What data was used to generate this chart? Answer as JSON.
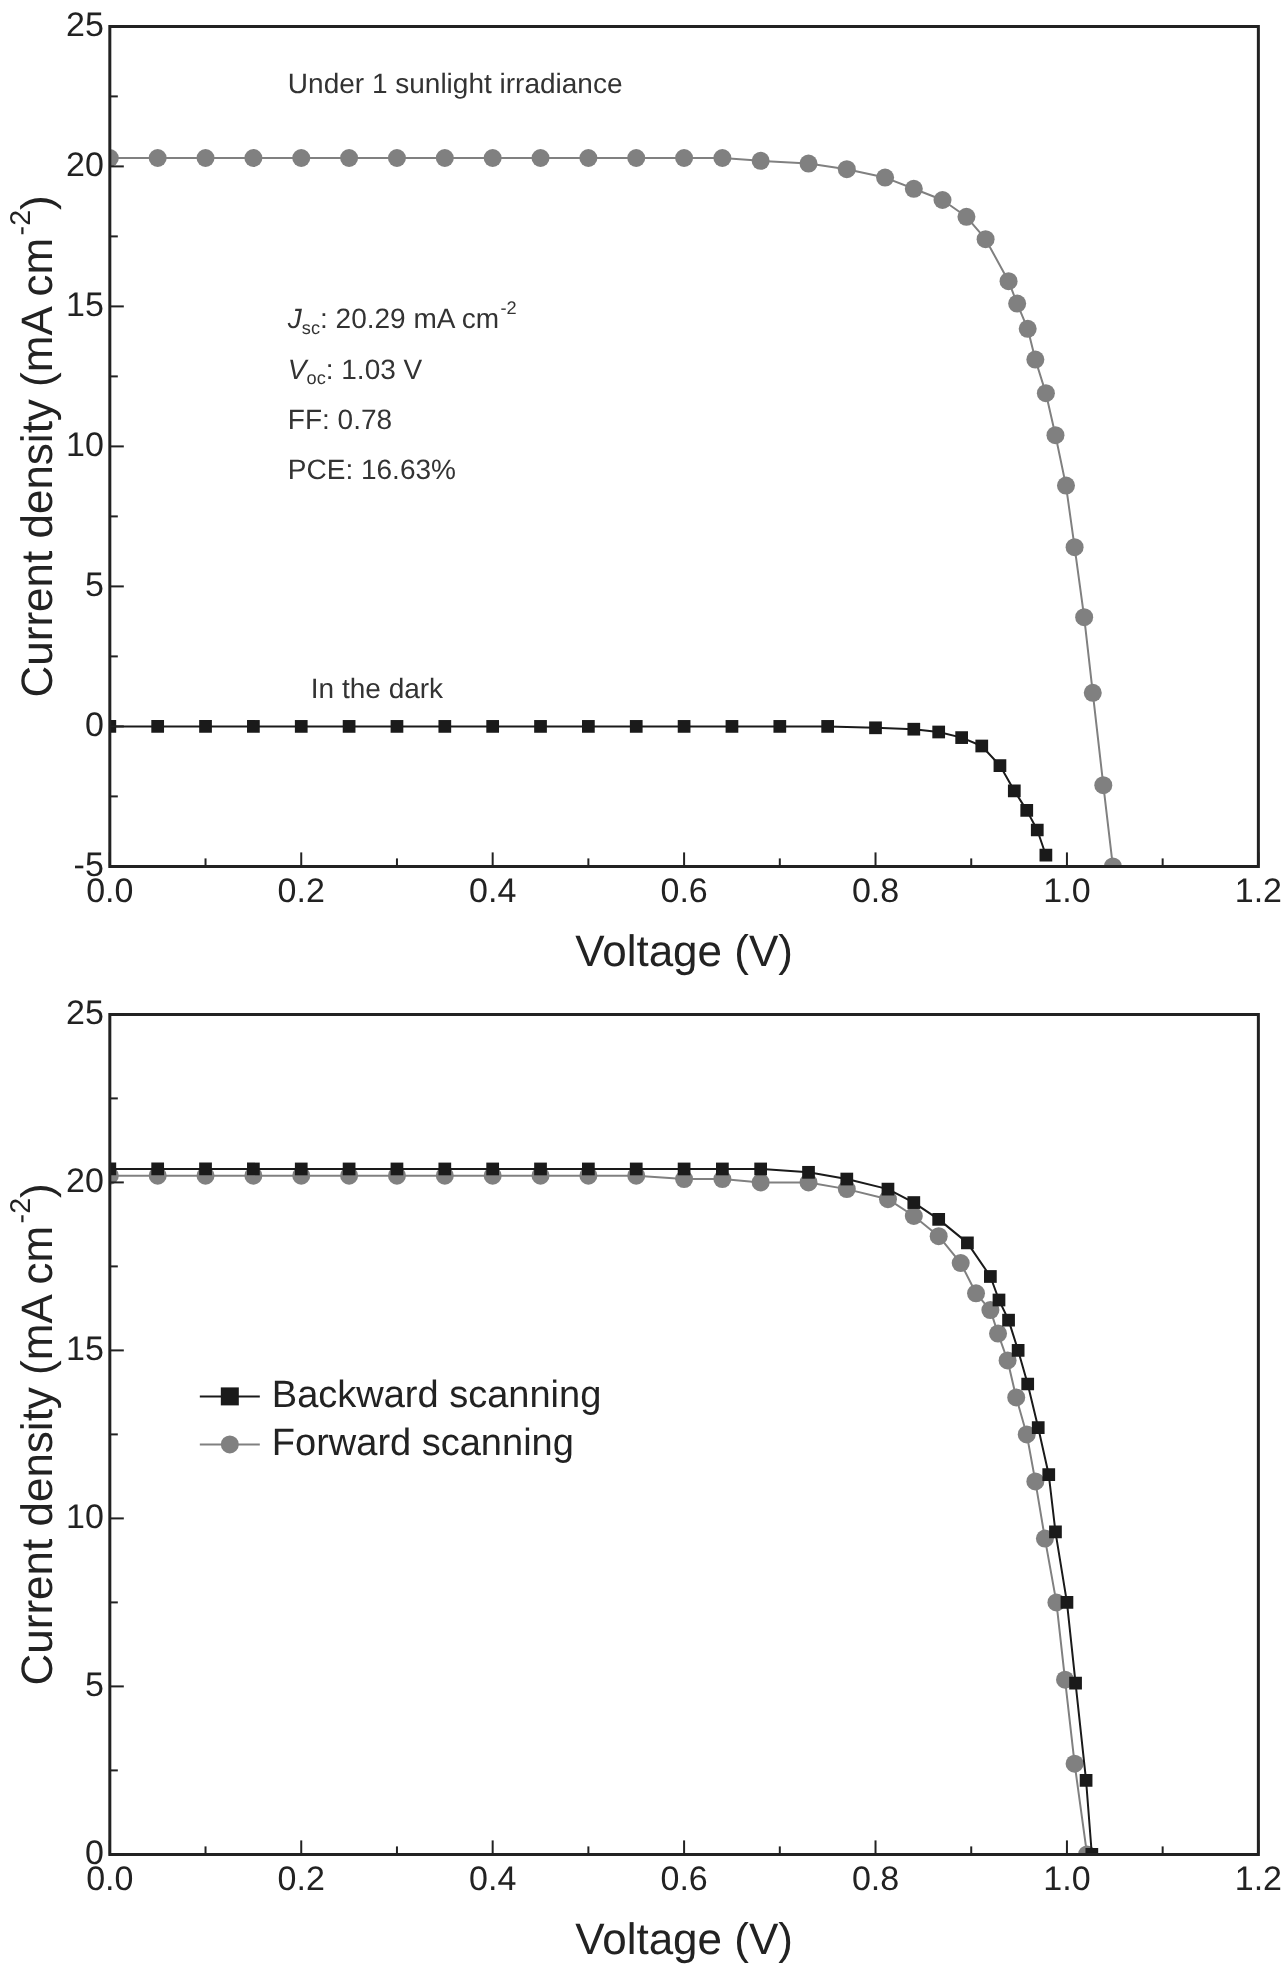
{
  "chart_data": [
    {
      "type": "line",
      "xlabel": "Voltage (V)",
      "ylabel": "Current density (mA cm$^{-2}$)",
      "xlim": [
        0,
        1.2
      ],
      "ylim": [
        -5,
        25
      ],
      "xticks": [
        {
          "value": 0,
          "label": "0.0"
        },
        {
          "value": 0.2,
          "label": "0.2"
        },
        {
          "value": 0.4,
          "label": "0.4"
        },
        {
          "value": 0.6,
          "label": "0.6"
        },
        {
          "value": 0.8,
          "label": "0.8"
        },
        {
          "value": 1.0,
          "label": "1.0"
        },
        {
          "value": 1.2,
          "label": "1.2"
        }
      ],
      "yticks": [
        -5,
        0,
        5,
        10,
        15,
        20,
        25
      ],
      "grid": false,
      "legend": false,
      "line_style": "solid",
      "annotations": [
        "Under 1 sunlight irradiance",
        "J$_{sc}$: 20.29 mA cm$^{-2}$",
        "V$_{oc}$: 1.03 V",
        "FF: 0.78",
        "PCE: 16.63%",
        "In the dark"
      ],
      "series": [
        {
          "color": "#808080",
          "marker": "circle",
          "x": [
            0,
            0.05,
            0.1,
            0.15,
            0.2,
            0.25,
            0.3,
            0.35,
            0.4,
            0.45,
            0.5,
            0.55,
            0.6,
            0.64,
            0.68,
            0.73,
            0.77,
            0.81,
            0.84,
            0.87,
            0.895,
            0.915,
            0.939,
            0.948,
            0.959,
            0.967,
            0.978,
            0.988,
            0.999,
            1.008,
            1.018,
            1.027,
            1.038,
            1.048
          ],
          "values": [
            20.3,
            20.3,
            20.3,
            20.3,
            20.3,
            20.3,
            20.3,
            20.3,
            20.3,
            20.3,
            20.3,
            20.3,
            20.3,
            20.3,
            20.2,
            20.1,
            19.9,
            19.6,
            19.2,
            18.8,
            18.2,
            17.4,
            15.9,
            15.1,
            14.2,
            13.1,
            11.9,
            10.4,
            8.6,
            6.4,
            3.9,
            1.2,
            -2.1,
            -5
          ]
        },
        {
          "color": "#1a1a1a",
          "marker": "square",
          "x": [
            0,
            0.05,
            0.1,
            0.15,
            0.2,
            0.25,
            0.3,
            0.35,
            0.4,
            0.45,
            0.5,
            0.55,
            0.6,
            0.65,
            0.7,
            0.75,
            0.8,
            0.84,
            0.866,
            0.89,
            0.911,
            0.93,
            0.945,
            0.958,
            0.969,
            0.978
          ],
          "values": [
            0,
            0,
            0,
            0,
            0,
            0,
            0,
            0,
            0,
            0,
            0,
            0,
            0,
            0,
            0,
            0,
            -0.05,
            -0.1,
            -0.2,
            -0.4,
            -0.7,
            -1.4,
            -2.3,
            -3.0,
            -3.7,
            -4.6
          ]
        }
      ]
    },
    {
      "type": "line",
      "xlabel": "Voltage (V)",
      "ylabel": "Current density (mA cm$^{-2}$)",
      "xlim": [
        0,
        1.2
      ],
      "ylim": [
        0,
        25
      ],
      "xticks": [
        {
          "value": 0,
          "label": "0.0"
        },
        {
          "value": 0.2,
          "label": "0.2"
        },
        {
          "value": 0.4,
          "label": "0.4"
        },
        {
          "value": 0.6,
          "label": "0.6"
        },
        {
          "value": 0.8,
          "label": "0.8"
        },
        {
          "value": 1.0,
          "label": "1.0"
        },
        {
          "value": 1.2,
          "label": "1.2"
        }
      ],
      "yticks": [
        0,
        5,
        10,
        15,
        20,
        25
      ],
      "grid": false,
      "legend": "left",
      "line_style": "solid",
      "series": [
        {
          "name": "Backward scanning",
          "color": "#1a1a1a",
          "marker": "square",
          "x": [
            0,
            0.05,
            0.1,
            0.15,
            0.2,
            0.25,
            0.3,
            0.35,
            0.4,
            0.45,
            0.5,
            0.55,
            0.6,
            0.64,
            0.68,
            0.73,
            0.77,
            0.813,
            0.84,
            0.866,
            0.896,
            0.92,
            0.929,
            0.939,
            0.949,
            0.959,
            0.97,
            0.981,
            0.988,
            1.0,
            1.009,
            1.02,
            1.026
          ],
          "values": [
            20.4,
            20.4,
            20.4,
            20.4,
            20.4,
            20.4,
            20.4,
            20.4,
            20.4,
            20.4,
            20.4,
            20.4,
            20.4,
            20.4,
            20.4,
            20.3,
            20.1,
            19.8,
            19.4,
            18.9,
            18.2,
            17.2,
            16.5,
            15.9,
            15.0,
            14.0,
            12.7,
            11.3,
            9.6,
            7.5,
            5.1,
            2.2,
            0
          ]
        },
        {
          "name": "Forward scanning",
          "color": "#808080",
          "marker": "circle",
          "x": [
            0,
            0.05,
            0.1,
            0.15,
            0.2,
            0.25,
            0.3,
            0.35,
            0.4,
            0.45,
            0.5,
            0.55,
            0.6,
            0.64,
            0.68,
            0.73,
            0.77,
            0.813,
            0.84,
            0.866,
            0.889,
            0.905,
            0.92,
            0.928,
            0.938,
            0.947,
            0.958,
            0.967,
            0.977,
            0.989,
            0.998,
            1.008,
            1.021
          ],
          "values": [
            20.2,
            20.2,
            20.2,
            20.2,
            20.2,
            20.2,
            20.2,
            20.2,
            20.2,
            20.2,
            20.2,
            20.2,
            20.1,
            20.1,
            20.0,
            20.0,
            19.8,
            19.5,
            19.0,
            18.4,
            17.6,
            16.7,
            16.2,
            15.5,
            14.7,
            13.6,
            12.5,
            11.1,
            9.4,
            7.5,
            5.2,
            2.7,
            0
          ]
        }
      ]
    }
  ]
}
